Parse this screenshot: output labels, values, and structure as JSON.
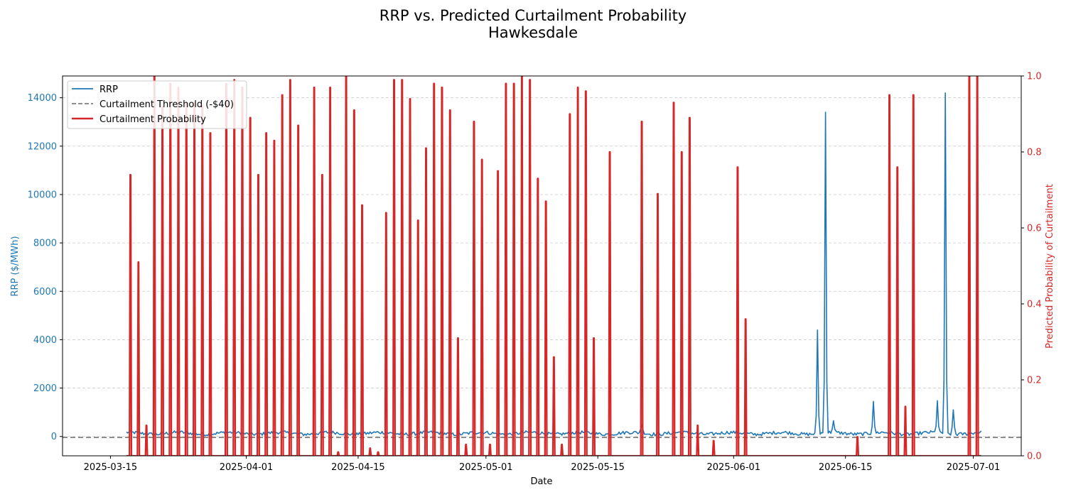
{
  "chart_data": {
    "type": "line",
    "title": "RRP vs. Predicted Curtailment Probability",
    "subtitle": "Hawkesdale",
    "xlabel": "Date",
    "ylabel_left": "RRP ($/MWh)",
    "ylabel_right": "Predicted Probability of Curtailment",
    "x_range": [
      "2025-03-09",
      "2025-07-07"
    ],
    "x_ticks": [
      "2025-03-15",
      "2025-04-01",
      "2025-04-15",
      "2025-05-01",
      "2025-05-15",
      "2025-06-01",
      "2025-06-15",
      "2025-07-01"
    ],
    "ylim_left": [
      -800,
      14900
    ],
    "yticks_left": [
      0,
      2000,
      4000,
      6000,
      8000,
      10000,
      12000,
      14000
    ],
    "ylim_right": [
      0,
      1
    ],
    "yticks_right": [
      "0.0",
      "0.2",
      "0.4",
      "0.6",
      "0.8",
      "1.0"
    ],
    "grid": "horizontal dashed",
    "legend_position": "upper-left",
    "colors": {
      "rrp": "#1f77b4",
      "threshold": "#7f7f7f",
      "probability": "#d62728",
      "left_axis": "#1f77b4",
      "right_axis": "#d62728"
    },
    "threshold": {
      "name": "Curtailment Threshold (-$40)",
      "value": -40
    },
    "series": [
      {
        "name": "RRP",
        "axis": "left",
        "baseline": 130,
        "spikes": [
          {
            "date": "2025-06-11",
            "value": 4400
          },
          {
            "date": "2025-06-12",
            "value": 13400
          },
          {
            "date": "2025-06-13",
            "value": 650
          },
          {
            "date": "2025-06-18",
            "value": 1450
          },
          {
            "date": "2025-06-26",
            "value": 1480
          },
          {
            "date": "2025-06-27",
            "value": 14200
          },
          {
            "date": "2025-06-28",
            "value": 1100
          },
          {
            "date": "2025-05-20",
            "value": 480
          }
        ]
      },
      {
        "name": "Curtailment Probability",
        "axis": "right",
        "peaks": [
          {
            "date": "2025-03-17",
            "value": 0.74
          },
          {
            "date": "2025-03-18",
            "value": 0.51
          },
          {
            "date": "2025-03-19",
            "value": 0.08
          },
          {
            "date": "2025-03-20",
            "value": 1.0
          },
          {
            "date": "2025-03-21",
            "value": 0.92
          },
          {
            "date": "2025-03-22",
            "value": 0.98
          },
          {
            "date": "2025-03-23",
            "value": 0.97
          },
          {
            "date": "2025-03-24",
            "value": 0.93
          },
          {
            "date": "2025-03-25",
            "value": 0.93
          },
          {
            "date": "2025-03-26",
            "value": 0.92
          },
          {
            "date": "2025-03-27",
            "value": 0.85
          },
          {
            "date": "2025-03-29",
            "value": 0.98
          },
          {
            "date": "2025-03-30",
            "value": 0.99
          },
          {
            "date": "2025-03-31",
            "value": 0.97
          },
          {
            "date": "2025-04-01",
            "value": 0.89
          },
          {
            "date": "2025-04-02",
            "value": 0.74
          },
          {
            "date": "2025-04-03",
            "value": 0.85
          },
          {
            "date": "2025-04-04",
            "value": 0.83
          },
          {
            "date": "2025-04-05",
            "value": 0.95
          },
          {
            "date": "2025-04-06",
            "value": 0.99
          },
          {
            "date": "2025-04-07",
            "value": 0.87
          },
          {
            "date": "2025-04-09",
            "value": 0.97
          },
          {
            "date": "2025-04-10",
            "value": 0.74
          },
          {
            "date": "2025-04-11",
            "value": 0.97
          },
          {
            "date": "2025-04-12",
            "value": 0.01
          },
          {
            "date": "2025-04-13",
            "value": 1.0
          },
          {
            "date": "2025-04-14",
            "value": 0.91
          },
          {
            "date": "2025-04-15",
            "value": 0.66
          },
          {
            "date": "2025-04-16",
            "value": 0.02
          },
          {
            "date": "2025-04-17",
            "value": 0.01
          },
          {
            "date": "2025-04-18",
            "value": 0.64
          },
          {
            "date": "2025-04-19",
            "value": 0.99
          },
          {
            "date": "2025-04-20",
            "value": 0.99
          },
          {
            "date": "2025-04-21",
            "value": 0.94
          },
          {
            "date": "2025-04-22",
            "value": 0.62
          },
          {
            "date": "2025-04-23",
            "value": 0.81
          },
          {
            "date": "2025-04-24",
            "value": 0.98
          },
          {
            "date": "2025-04-25",
            "value": 0.97
          },
          {
            "date": "2025-04-26",
            "value": 0.91
          },
          {
            "date": "2025-04-27",
            "value": 0.31
          },
          {
            "date": "2025-04-28",
            "value": 0.03
          },
          {
            "date": "2025-04-29",
            "value": 0.88
          },
          {
            "date": "2025-04-30",
            "value": 0.78
          },
          {
            "date": "2025-05-01",
            "value": 0.03
          },
          {
            "date": "2025-05-02",
            "value": 0.75
          },
          {
            "date": "2025-05-03",
            "value": 0.98
          },
          {
            "date": "2025-05-04",
            "value": 0.98
          },
          {
            "date": "2025-05-05",
            "value": 1.0
          },
          {
            "date": "2025-05-06",
            "value": 0.99
          },
          {
            "date": "2025-05-07",
            "value": 0.73
          },
          {
            "date": "2025-05-08",
            "value": 0.67
          },
          {
            "date": "2025-05-09",
            "value": 0.26
          },
          {
            "date": "2025-05-10",
            "value": 0.03
          },
          {
            "date": "2025-05-11",
            "value": 0.9
          },
          {
            "date": "2025-05-12",
            "value": 0.97
          },
          {
            "date": "2025-05-13",
            "value": 0.96
          },
          {
            "date": "2025-05-14",
            "value": 0.31
          },
          {
            "date": "2025-05-16",
            "value": 0.8
          },
          {
            "date": "2025-05-20",
            "value": 0.88
          },
          {
            "date": "2025-05-22",
            "value": 0.69
          },
          {
            "date": "2025-05-24",
            "value": 0.93
          },
          {
            "date": "2025-05-25",
            "value": 0.8
          },
          {
            "date": "2025-05-26",
            "value": 0.89
          },
          {
            "date": "2025-05-27",
            "value": 0.08
          },
          {
            "date": "2025-05-29",
            "value": 0.04
          },
          {
            "date": "2025-06-01",
            "value": 0.76
          },
          {
            "date": "2025-06-02",
            "value": 0.36
          },
          {
            "date": "2025-06-16",
            "value": 0.05
          },
          {
            "date": "2025-06-20",
            "value": 0.95
          },
          {
            "date": "2025-06-21",
            "value": 0.76
          },
          {
            "date": "2025-06-22",
            "value": 0.13
          },
          {
            "date": "2025-06-23",
            "value": 0.95
          },
          {
            "date": "2025-06-30",
            "value": 1.0
          },
          {
            "date": "2025-07-01",
            "value": 1.0
          }
        ]
      }
    ]
  }
}
